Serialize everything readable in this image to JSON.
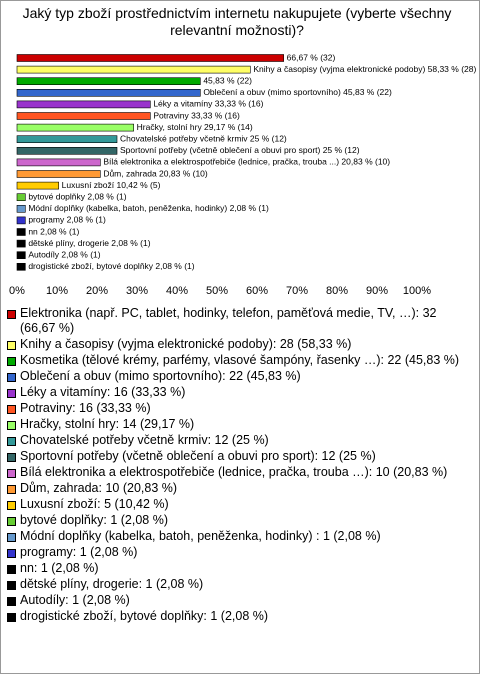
{
  "chart_data": {
    "type": "hbar",
    "title": "Jaký typ zboží prostřednictvím internetu nakupujete (vyberte všechny relevantní možnosti)?",
    "categories": [
      "Elektronika (např. PC, tablet, hodinky, telefon, paměťová medie, TV, …): 32 (66,67 %)",
      "Knihy a časopisy (vyjma elektronické podoby): 28 (58,33 %)",
      "Kosmetika (tělové krémy, parfémy, vlasové šampóny, řasenky …): 22 (45,83 %)",
      "Oblečení a obuv (mimo sportovního): 22 (45,83 %)",
      "Léky a vitamíny: 16 (33,33 %)",
      "Potraviny: 16 (33,33 %)",
      "Hračky, stolní hry: 14 (29,17 %)",
      "Chovatelské potřeby včetně krmiv: 12 (25 %)",
      "Sportovní potřeby (včetně oblečení a obuvi pro sport): 12 (25 %)",
      "Bílá elektronika a elektrospotřebiče (lednice, pračka, trouba …): 10 (20,83 %)",
      "Dům, zahrada: 10 (20,83 %)",
      "Luxusní zboží: 5 (10,42 %)",
      "bytové doplňky: 1 (2,08 %)",
      "Módní doplňky (kabelka, batoh, peněženka, hodinky) : 1 (2,08 %)",
      "programy: 1 (2,08 %)",
      "nn: 1 (2,08 %)",
      "dětské plíny, drogerie: 1 (2,08 %)",
      "Autodíly: 1 (2,08 %)",
      "drogistické zboží, bytové doplňky: 1 (2,08 %)"
    ],
    "values": [
      66.67,
      58.33,
      45.83,
      45.83,
      33.33,
      33.33,
      29.17,
      25,
      25,
      20.83,
      20.83,
      10.42,
      2.08,
      2.08,
      2.08,
      2.08,
      2.08,
      2.08,
      2.08
    ],
    "value_labels": [
      "66,67 % (32)",
      "Knihy a časopisy (vyjma elektronické podoby) 58,33 % (28)",
      "45,83 % (22)",
      "Oblečení a obuv (mimo sportovního) 45,83 % (22)",
      "Léky a vitamíny 33,33 % (16)",
      "Potraviny 33,33 % (16)",
      "Hračky, stolní hry 29,17 % (14)",
      "Chovatelské potřeby včetně krmiv 25 % (12)",
      "Sportovní potřeby (včetně oblečení a obuvi pro sport) 25 % (12)",
      "Bílá elektronika a elektrospotřebiče (lednice, pračka, trouba ...) 20,83 % (10)",
      "Dům, zahrada 20,83 % (10)",
      "Luxusní zboží 10,42 % (5)",
      "bytové doplňky 2,08 % (1)",
      "Módní doplňky (kabelka, batoh, peněženka, hodinky)  2,08 % (1)",
      "programy 2,08 % (1)",
      "nn 2,08 % (1)",
      "dětské plíny, drogerie 2,08 % (1)",
      "Autodíly 2,08 % (1)",
      "drogistické zboží, bytové doplňky 2,08 % (1)"
    ],
    "colors": [
      "#cc0000",
      "#ffff66",
      "#00aa00",
      "#3366cc",
      "#9933cc",
      "#ff5522",
      "#99ff66",
      "#339999",
      "#336666",
      "#cc66cc",
      "#ff9933",
      "#ffcc00",
      "#66cc33",
      "#6699cc",
      "#3333cc",
      "#000000",
      "#000000",
      "#000000",
      "#000000"
    ],
    "xlim": [
      0,
      100
    ],
    "xticks": [
      {
        "value": 0,
        "label": "0%"
      },
      {
        "value": 10,
        "label": "10%"
      },
      {
        "value": 20,
        "label": "20%"
      },
      {
        "value": 30,
        "label": "30%"
      },
      {
        "value": 40,
        "label": "40%"
      },
      {
        "value": 50,
        "label": "50%"
      },
      {
        "value": 60,
        "label": "60%"
      },
      {
        "value": 70,
        "label": "70%"
      },
      {
        "value": 80,
        "label": "80%"
      },
      {
        "value": 90,
        "label": "90%"
      },
      {
        "value": 100,
        "label": "100%"
      }
    ]
  }
}
